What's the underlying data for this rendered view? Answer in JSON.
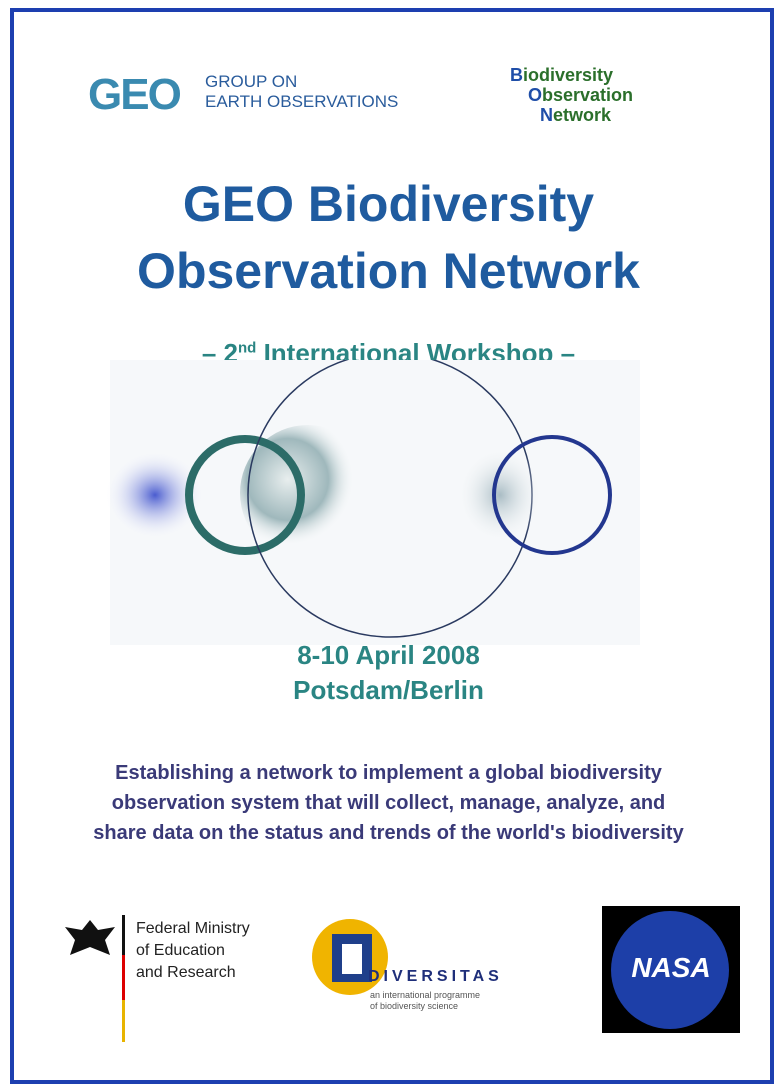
{
  "header": {
    "geo_logo": {
      "mark": "GEO",
      "lines": [
        "GROUP ON",
        "EARTH OBSERVATIONS"
      ]
    },
    "bon_logo": [
      "Biodiversity",
      "Observation",
      "Network"
    ]
  },
  "title": [
    "GEO Biodiversity",
    "Observation Network"
  ],
  "subtitle": {
    "prefix": "– 2",
    "superscript": "nd",
    "suffix": " International Workshop –"
  },
  "event": {
    "date": "8-10 April 2008",
    "location": "Potsdam/Berlin"
  },
  "description": [
    "Establishing a network to implement a global biodiversity",
    "observation system that will collect, manage, analyze, and",
    "share data on the status and trends of the world's biodiversity"
  ],
  "sponsors": {
    "bmbf": [
      "Federal Ministry",
      "of Education",
      "and Research"
    ],
    "diversitas": {
      "name": "DIVERSITAS",
      "tagline": [
        "an international programme",
        "of biodiversity science"
      ]
    },
    "nasa": "NASA"
  }
}
